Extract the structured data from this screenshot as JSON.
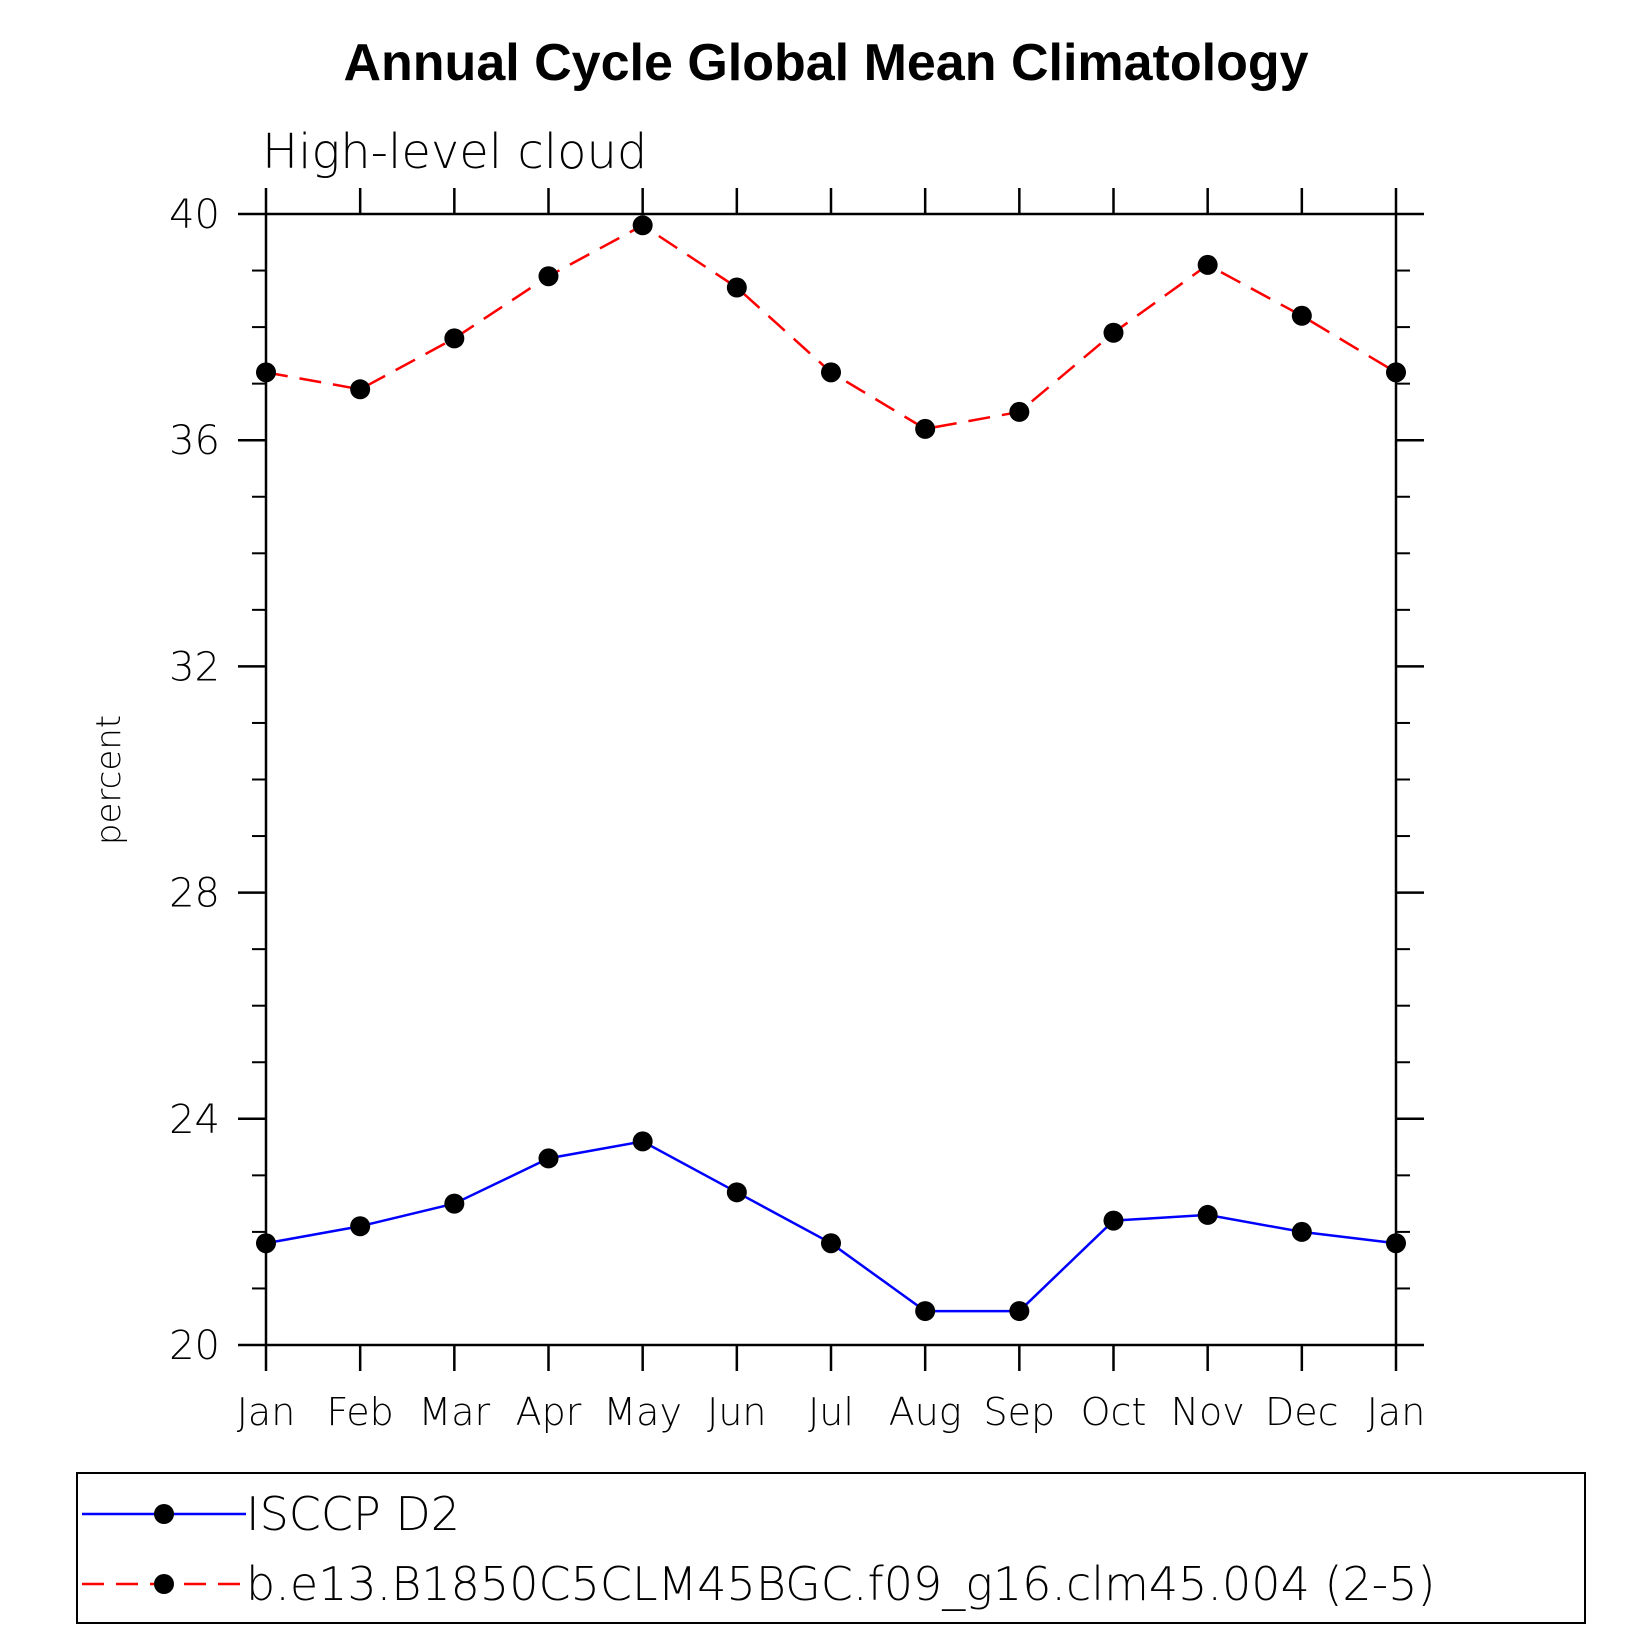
{
  "chart_data": {
    "type": "line",
    "title": "Annual Cycle Global Mean Climatology",
    "subtitle": "High-level cloud",
    "xlabel": "",
    "ylabel": "percent",
    "categories": [
      "Jan",
      "Feb",
      "Mar",
      "Apr",
      "May",
      "Jun",
      "Jul",
      "Aug",
      "Sep",
      "Oct",
      "Nov",
      "Dec",
      "Jan"
    ],
    "ylim": [
      20,
      40
    ],
    "yticks": [
      "20",
      "24",
      "28",
      "32",
      "36",
      "40"
    ],
    "series": [
      {
        "name": "ISCCP D2",
        "color": "#0000ff",
        "style": "solid",
        "values": [
          21.8,
          22.1,
          22.5,
          23.3,
          23.6,
          22.7,
          21.8,
          20.6,
          20.6,
          22.2,
          22.3,
          22.0,
          21.8
        ]
      },
      {
        "name": "b.e13.B1850C5CLM45BGC.f09_g16.clm45.004 (2-5)",
        "color": "#ff0000",
        "style": "dashed",
        "values": [
          37.2,
          36.9,
          37.8,
          38.9,
          39.8,
          38.7,
          37.2,
          36.2,
          36.5,
          37.9,
          39.1,
          38.2,
          37.2
        ]
      }
    ],
    "grid": false,
    "legend_position": "bottom"
  }
}
